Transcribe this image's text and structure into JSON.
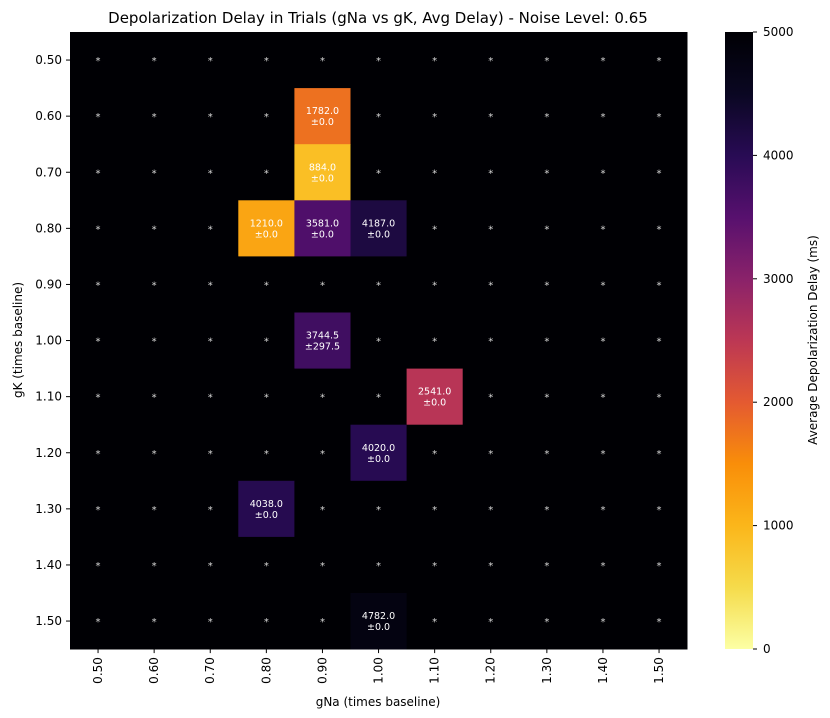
{
  "chart_data": {
    "type": "heatmap",
    "title": "Depolarization Delay in Trials (gNa vs gK, Avg Delay) - Noise Level: 0.65",
    "xlabel": "gNa (times baseline)",
    "ylabel": "gK (times baseline)",
    "x_categories": [
      "0.50",
      "0.60",
      "0.70",
      "0.80",
      "0.90",
      "1.00",
      "1.10",
      "1.20",
      "1.30",
      "1.40",
      "1.50"
    ],
    "y_categories": [
      "0.50",
      "0.60",
      "0.70",
      "0.80",
      "0.90",
      "1.00",
      "1.10",
      "1.20",
      "1.30",
      "1.40",
      "1.50"
    ],
    "default_value": 5000,
    "default_marker": "*",
    "cells": [
      {
        "x": "0.90",
        "y": "0.60",
        "mean": 1782.0,
        "std": 0.0,
        "label": "1782.0",
        "sublabel": "±0.0"
      },
      {
        "x": "0.90",
        "y": "0.70",
        "mean": 884.0,
        "std": 0.0,
        "label": "884.0",
        "sublabel": "±0.0"
      },
      {
        "x": "0.80",
        "y": "0.80",
        "mean": 1210.0,
        "std": 0.0,
        "label": "1210.0",
        "sublabel": "±0.0"
      },
      {
        "x": "0.90",
        "y": "0.80",
        "mean": 3581.0,
        "std": 0.0,
        "label": "3581.0",
        "sublabel": "±0.0"
      },
      {
        "x": "1.00",
        "y": "0.80",
        "mean": 4187.0,
        "std": 0.0,
        "label": "4187.0",
        "sublabel": "±0.0"
      },
      {
        "x": "0.90",
        "y": "1.00",
        "mean": 3744.5,
        "std": 297.5,
        "label": "3744.5",
        "sublabel": "±297.5"
      },
      {
        "x": "1.10",
        "y": "1.10",
        "mean": 2541.0,
        "std": 0.0,
        "label": "2541.0",
        "sublabel": "±0.0"
      },
      {
        "x": "1.00",
        "y": "1.20",
        "mean": 4020.0,
        "std": 0.0,
        "label": "4020.0",
        "sublabel": "±0.0"
      },
      {
        "x": "0.80",
        "y": "1.30",
        "mean": 4038.0,
        "std": 0.0,
        "label": "4038.0",
        "sublabel": "±0.0"
      },
      {
        "x": "1.00",
        "y": "1.50",
        "mean": 4782.0,
        "std": 0.0,
        "label": "4782.0",
        "sublabel": "±0.0"
      }
    ],
    "colorbar": {
      "label": "Average Depolarization Delay (ms)",
      "range": [
        0,
        5000
      ],
      "ticks": [
        "0",
        "1000",
        "2000",
        "3000",
        "4000",
        "5000"
      ],
      "colormap": "inferno_r"
    },
    "grid": false
  }
}
